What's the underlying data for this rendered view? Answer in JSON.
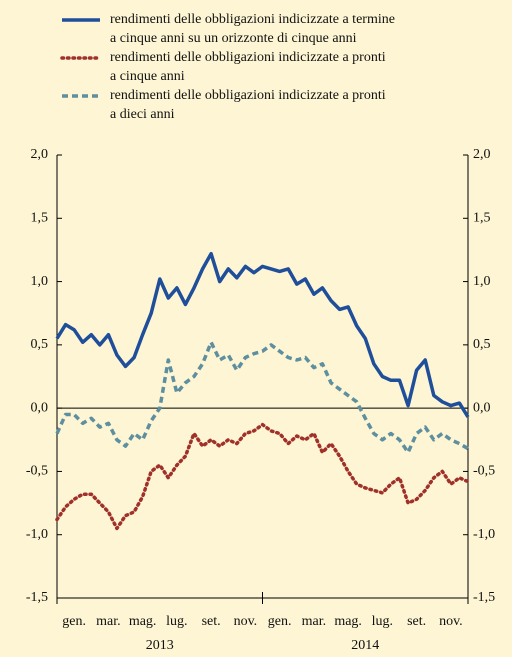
{
  "chart_data": {
    "type": "line",
    "series": [
      {
        "name": [
          "rendimenti delle obbligazioni indicizzate a termine",
          "a cinque anni su un orizzonte di cinque anni"
        ],
        "color": "#1f4e9a",
        "style": "solid",
        "values": [
          0.55,
          0.66,
          0.62,
          0.52,
          0.58,
          0.5,
          0.58,
          0.42,
          0.33,
          0.4,
          0.58,
          0.75,
          1.02,
          0.87,
          0.95,
          0.82,
          0.95,
          1.1,
          1.22,
          1.0,
          1.1,
          1.03,
          1.12,
          1.07,
          1.12,
          1.1,
          1.08,
          1.1,
          0.98,
          1.02,
          0.9,
          0.95,
          0.85,
          0.78,
          0.8,
          0.65,
          0.55,
          0.35,
          0.25,
          0.22,
          0.22,
          0.02,
          0.3,
          0.38,
          0.1,
          0.05,
          0.02,
          0.04,
          -0.07
        ]
      },
      {
        "name": [
          "rendimenti delle obbligazioni indicizzate a pronti",
          "a cinque anni"
        ],
        "color": "#a0302a",
        "style": "dotted",
        "values": [
          -0.88,
          -0.78,
          -0.72,
          -0.68,
          -0.68,
          -0.75,
          -0.82,
          -0.95,
          -0.85,
          -0.82,
          -0.7,
          -0.5,
          -0.45,
          -0.55,
          -0.45,
          -0.38,
          -0.2,
          -0.3,
          -0.25,
          -0.3,
          -0.25,
          -0.28,
          -0.2,
          -0.18,
          -0.13,
          -0.18,
          -0.2,
          -0.28,
          -0.22,
          -0.25,
          -0.2,
          -0.35,
          -0.28,
          -0.38,
          -0.5,
          -0.6,
          -0.63,
          -0.65,
          -0.67,
          -0.6,
          -0.55,
          -0.75,
          -0.72,
          -0.65,
          -0.55,
          -0.5,
          -0.6,
          -0.55,
          -0.58
        ]
      },
      {
        "name": [
          "rendimenti delle obbligazioni indicizzate a pronti",
          "a dieci anni"
        ],
        "color": "#5e8fa0",
        "style": "dashed",
        "values": [
          -0.2,
          -0.05,
          -0.05,
          -0.12,
          -0.08,
          -0.15,
          -0.12,
          -0.25,
          -0.3,
          -0.2,
          -0.25,
          -0.1,
          0.0,
          0.38,
          0.12,
          0.2,
          0.25,
          0.35,
          0.52,
          0.38,
          0.42,
          0.3,
          0.4,
          0.43,
          0.45,
          0.5,
          0.45,
          0.4,
          0.38,
          0.4,
          0.32,
          0.35,
          0.2,
          0.15,
          0.1,
          0.05,
          -0.08,
          -0.2,
          -0.25,
          -0.2,
          -0.25,
          -0.35,
          -0.2,
          -0.15,
          -0.25,
          -0.2,
          -0.25,
          -0.28,
          -0.32
        ]
      }
    ],
    "x": [
      0,
      0.5,
      1,
      1.5,
      2,
      2.5,
      3,
      3.5,
      4,
      4.5,
      5,
      5.5,
      6,
      6.5,
      7,
      7.5,
      8,
      8.5,
      9,
      9.5,
      10,
      10.5,
      11,
      11.5,
      12,
      12.5,
      13,
      13.5,
      14,
      14.5,
      15,
      15.5,
      16,
      16.5,
      17,
      17.5,
      18,
      18.5,
      19,
      19.5,
      20,
      20.5,
      21,
      21.5,
      22,
      22.5,
      23,
      23.5,
      24
    ],
    "xlim": [
      0,
      24
    ],
    "xticks": [
      {
        "value": 1,
        "label": "gen."
      },
      {
        "value": 3,
        "label": "mar."
      },
      {
        "value": 5,
        "label": "mag."
      },
      {
        "value": 7,
        "label": "lug."
      },
      {
        "value": 9,
        "label": "set."
      },
      {
        "value": 11,
        "label": "nov."
      },
      {
        "value": 13,
        "label": "gen."
      },
      {
        "value": 15,
        "label": "mar."
      },
      {
        "value": 17,
        "label": "mag."
      },
      {
        "value": 19,
        "label": "lug."
      },
      {
        "value": 21,
        "label": "set."
      },
      {
        "value": 23,
        "label": "nov."
      }
    ],
    "year_labels": [
      {
        "value": 6,
        "label": "2013"
      },
      {
        "value": 18,
        "label": "2014"
      }
    ],
    "year_boundaries": [
      0,
      12,
      24
    ],
    "ylim": [
      -1.5,
      2.0
    ],
    "yticks": [
      {
        "value": 2.0,
        "label": "2,0"
      },
      {
        "value": 1.5,
        "label": "1,5"
      },
      {
        "value": 1.0,
        "label": "1,0"
      },
      {
        "value": 0.5,
        "label": "0,5"
      },
      {
        "value": 0.0,
        "label": "0,0"
      },
      {
        "value": -0.5,
        "label": "-0,5"
      },
      {
        "value": -1.0,
        "label": "-1,0"
      },
      {
        "value": -1.5,
        "label": "-1,5"
      }
    ]
  }
}
